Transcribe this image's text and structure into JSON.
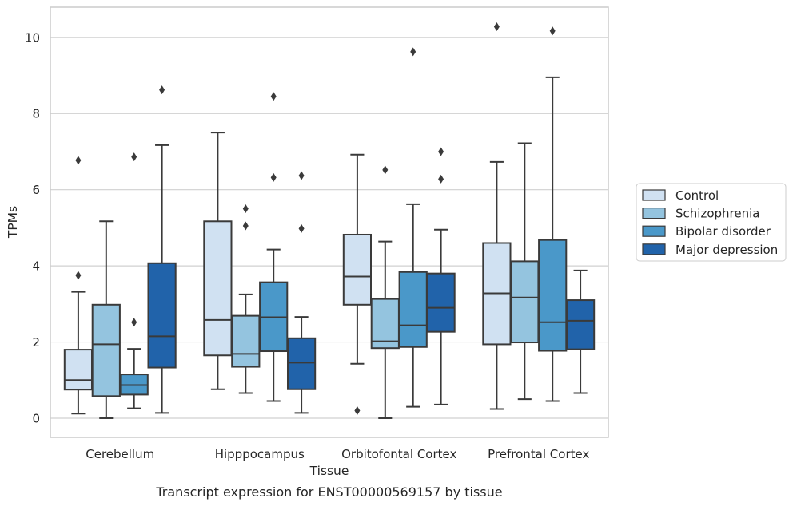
{
  "chart_data": {
    "type": "box",
    "caption": "Transcript expression for ENST00000569157 by tissue",
    "xlabel": "Tissue",
    "ylabel": "TPMs",
    "ylim": [
      -0.5,
      10.8
    ],
    "yticks": [
      0,
      2,
      4,
      6,
      8,
      10
    ],
    "grid": "horizontal",
    "legend_position": "right",
    "categories": [
      "Cerebellum",
      "Hipppocampus",
      "Orbitofontal Cortex",
      "Prefrontal Cortex"
    ],
    "series": [
      {
        "name": "Control",
        "color": "#d0e1f2",
        "boxes": [
          {
            "whisker_low": 0.12,
            "q1": 0.75,
            "median": 1.0,
            "q3": 1.8,
            "whisker_high": 3.32,
            "outliers": [
              3.75,
              6.77
            ]
          },
          {
            "whisker_low": 0.76,
            "q1": 1.65,
            "median": 2.58,
            "q3": 5.17,
            "whisker_high": 7.5,
            "outliers": []
          },
          {
            "whisker_low": 1.43,
            "q1": 2.98,
            "median": 3.72,
            "q3": 4.82,
            "whisker_high": 6.92,
            "outliers": [
              0.2
            ]
          },
          {
            "whisker_low": 0.24,
            "q1": 1.94,
            "median": 3.28,
            "q3": 4.6,
            "whisker_high": 6.73,
            "outliers": [
              10.28
            ]
          }
        ]
      },
      {
        "name": "Schizophrenia",
        "color": "#94c4df",
        "boxes": [
          {
            "whisker_low": 0.0,
            "q1": 0.58,
            "median": 1.94,
            "q3": 2.98,
            "whisker_high": 5.17,
            "outliers": []
          },
          {
            "whisker_low": 0.66,
            "q1": 1.35,
            "median": 1.69,
            "q3": 2.69,
            "whisker_high": 3.25,
            "outliers": [
              5.05,
              5.5
            ]
          },
          {
            "whisker_low": 0.0,
            "q1": 1.84,
            "median": 2.02,
            "q3": 3.13,
            "whisker_high": 4.64,
            "outliers": [
              6.52
            ]
          },
          {
            "whisker_low": 0.5,
            "q1": 1.99,
            "median": 3.17,
            "q3": 4.12,
            "whisker_high": 7.22,
            "outliers": []
          }
        ]
      },
      {
        "name": "Bipolar disorder",
        "color": "#4a98c9",
        "boxes": [
          {
            "whisker_low": 0.26,
            "q1": 0.62,
            "median": 0.87,
            "q3": 1.15,
            "whisker_high": 1.82,
            "outliers": [
              2.52,
              6.86
            ]
          },
          {
            "whisker_low": 0.45,
            "q1": 1.76,
            "median": 2.65,
            "q3": 3.57,
            "whisker_high": 4.43,
            "outliers": [
              6.32,
              8.45
            ]
          },
          {
            "whisker_low": 0.3,
            "q1": 1.87,
            "median": 2.44,
            "q3": 3.84,
            "whisker_high": 5.62,
            "outliers": [
              9.62
            ]
          },
          {
            "whisker_low": 0.45,
            "q1": 1.77,
            "median": 2.52,
            "q3": 4.68,
            "whisker_high": 8.95,
            "outliers": [
              10.17
            ]
          }
        ]
      },
      {
        "name": "Major depression",
        "color": "#2163aa",
        "boxes": [
          {
            "whisker_low": 0.14,
            "q1": 1.33,
            "median": 2.15,
            "q3": 4.07,
            "whisker_high": 7.17,
            "outliers": [
              8.62
            ]
          },
          {
            "whisker_low": 0.14,
            "q1": 0.76,
            "median": 1.46,
            "q3": 2.1,
            "whisker_high": 2.66,
            "outliers": [
              4.98,
              6.37
            ]
          },
          {
            "whisker_low": 0.36,
            "q1": 2.27,
            "median": 2.9,
            "q3": 3.8,
            "whisker_high": 4.95,
            "outliers": [
              6.28,
              7.0
            ]
          },
          {
            "whisker_low": 0.66,
            "q1": 1.81,
            "median": 2.56,
            "q3": 3.1,
            "whisker_high": 3.88,
            "outliers": []
          }
        ]
      }
    ]
  }
}
